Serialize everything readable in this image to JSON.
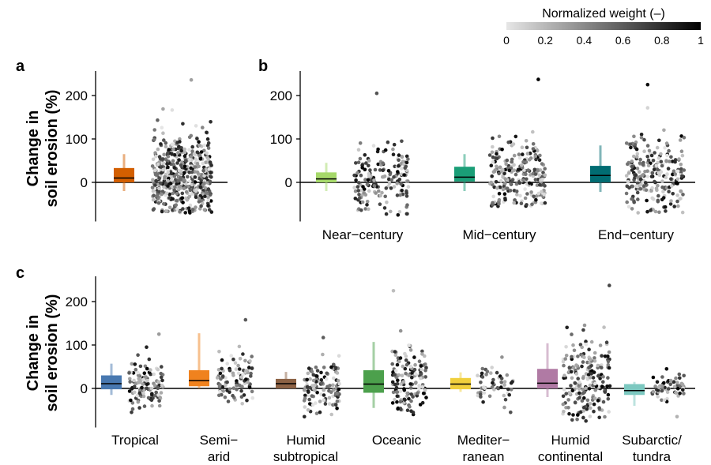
{
  "chart_data": [
    {
      "panel": "a",
      "type": "scatter",
      "ylabel": [
        "Change in",
        "soil erosion (%)"
      ],
      "ylim": [
        -90,
        255
      ],
      "yticks": [
        0,
        100,
        200
      ],
      "categories": [
        ""
      ],
      "boxes": [
        {
          "category": "",
          "color": "#d35f00",
          "whisker": [
            -20,
            65
          ],
          "q": [
            0,
            33
          ],
          "median": 10
        }
      ],
      "points": [
        {
          "category": "",
          "n": 520,
          "range": [
            -70,
            236
          ],
          "center": 15
        }
      ]
    },
    {
      "panel": "b",
      "type": "scatter",
      "ylim": [
        -90,
        255
      ],
      "yticks": [
        0,
        100,
        200
      ],
      "categories": [
        "Near−century",
        "Mid−century",
        "End−century"
      ],
      "boxes": [
        {
          "category": "Near−century",
          "color": "#a6d96a",
          "whisker": [
            -20,
            45
          ],
          "q": [
            0,
            23
          ],
          "median": 8
        },
        {
          "category": "Mid−century",
          "color": "#1a9e77",
          "whisker": [
            -20,
            65
          ],
          "q": [
            2,
            36
          ],
          "median": 12
        },
        {
          "category": "End−century",
          "color": "#016c72",
          "whisker": [
            -22,
            85
          ],
          "q": [
            0,
            38
          ],
          "median": 16
        }
      ],
      "points": [
        {
          "category": "Near−century",
          "n": 170,
          "range": [
            -75,
            205
          ],
          "center": 5
        },
        {
          "category": "Mid−century",
          "n": 230,
          "range": [
            -55,
            237
          ],
          "center": 10
        },
        {
          "category": "End−century",
          "n": 230,
          "range": [
            -70,
            225
          ],
          "center": 12
        }
      ]
    },
    {
      "panel": "c",
      "type": "scatter",
      "ylabel": [
        "Change in",
        "soil erosion (%)"
      ],
      "ylim": [
        -90,
        255
      ],
      "yticks": [
        0,
        100,
        200
      ],
      "categories": [
        "Tropical",
        "Semi−\narid",
        "Humid\nsubtropical",
        "Oceanic",
        "Mediter−\nranean",
        "Humid\ncontinental",
        "Subarctic/\ntundra"
      ],
      "boxes": [
        {
          "category": "Tropical",
          "color": "#4878b0",
          "whisker": [
            -15,
            57
          ],
          "q": [
            -2,
            30
          ],
          "median": 11
        },
        {
          "category": "Semi−arid",
          "color": "#f0821e",
          "whisker": [
            0,
            127
          ],
          "q": [
            5,
            42
          ],
          "median": 18
        },
        {
          "category": "Humid subtropical",
          "color": "#8c6245",
          "whisker": [
            0,
            38
          ],
          "q": [
            0,
            22
          ],
          "median": 11
        },
        {
          "category": "Oceanic",
          "color": "#4ca04c",
          "whisker": [
            -45,
            107
          ],
          "q": [
            -10,
            42
          ],
          "median": 10
        },
        {
          "category": "Mediter−ranean",
          "color": "#f0cf3c",
          "whisker": [
            -8,
            37
          ],
          "q": [
            -2,
            24
          ],
          "median": 10
        },
        {
          "category": "Humid continental",
          "color": "#b07aa4",
          "whisker": [
            -20,
            104
          ],
          "q": [
            0,
            45
          ],
          "median": 12
        },
        {
          "category": "Subarctic/tundra",
          "color": "#7cc8c0",
          "whisker": [
            -40,
            15
          ],
          "q": [
            -15,
            10
          ],
          "median": -5
        }
      ],
      "points": [
        {
          "category": "Tropical",
          "n": 120,
          "range": [
            -55,
            125
          ],
          "center": 5
        },
        {
          "category": "Semi−arid",
          "n": 95,
          "range": [
            -35,
            158
          ],
          "center": 20
        },
        {
          "category": "Humid subtropical",
          "n": 120,
          "range": [
            -65,
            117
          ],
          "center": 5
        },
        {
          "category": "Oceanic",
          "n": 140,
          "range": [
            -60,
            225
          ],
          "center": 10
        },
        {
          "category": "Mediter−ranean",
          "n": 55,
          "range": [
            -55,
            72
          ],
          "center": 8
        },
        {
          "category": "Humid continental",
          "n": 200,
          "range": [
            -75,
            237
          ],
          "center": 20
        },
        {
          "category": "Subarctic/tundra",
          "n": 60,
          "range": [
            -65,
            45
          ],
          "center": 2
        }
      ]
    }
  ],
  "colorbar": {
    "title": "Normalized weight (–)",
    "ticks": [
      "0",
      "0.2",
      "0.4",
      "0.6",
      "0.8",
      "1"
    ],
    "from_color": "#e6e6e6",
    "to_color": "#000000"
  }
}
